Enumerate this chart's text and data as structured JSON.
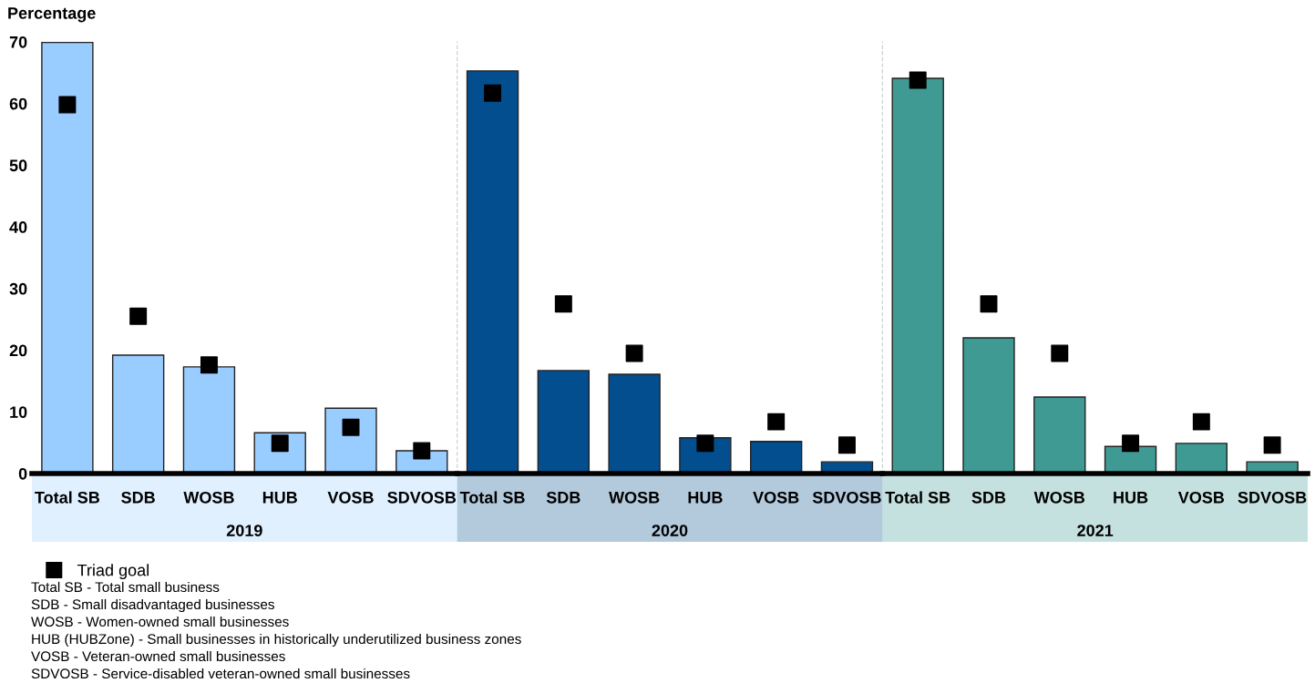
{
  "chart_data": [
    {
      "type": "bar",
      "ylabel": "Percentage",
      "xlabel": "2019",
      "categories": [
        "Total SB",
        "SDB",
        "WOSB",
        "HUB",
        "VOSB",
        "SDVOSB"
      ],
      "series": [
        {
          "color": "#99ccff",
          "values": [
            69.9,
            19.2,
            17.3,
            6.6,
            10.6,
            3.7
          ]
        },
        {
          "name": "Triad goal",
          "type": "scatter",
          "color": "#000000",
          "values": [
            59.8,
            25.5,
            17.6,
            4.9,
            7.5,
            3.7
          ]
        }
      ],
      "marker": "square",
      "ylim": [
        0,
        70
      ],
      "yticks": [
        0,
        10,
        20,
        30,
        40,
        50,
        60,
        70
      ],
      "grid": false,
      "legend": "bottom left",
      "annotations": [
        "Total SB - Total small business",
        "SDB - Small disadvantaged businesses",
        "WOSB - Women-owned small businesses",
        "HUB (HUBZone) - Small businesses in historically underutilized business zones",
        "VOSB - Veteran-owned small businesses",
        "SDVOSB - Service-disabled veteran-owned small businesses"
      ]
    },
    {
      "type": "bar",
      "xlabel": "2020",
      "categories": [
        "Total SB",
        "SDB",
        "WOSB",
        "HUB",
        "VOSB",
        "SDVOSB"
      ],
      "series": [
        {
          "color": "#034e8f",
          "values": [
            65.3,
            16.7,
            16.1,
            5.8,
            5.2,
            1.9
          ]
        },
        {
          "type": "scatter",
          "color": "#000000",
          "values": [
            61.7,
            27.5,
            19.5,
            4.9,
            8.4,
            4.6
          ]
        }
      ],
      "marker": "square",
      "ylim": [
        0,
        70
      ],
      "yticks": [
        0,
        10,
        20,
        30,
        40,
        50,
        60,
        70
      ],
      "grid": false,
      "tick_labels": "x"
    },
    {
      "type": "bar",
      "xlabel": "2021",
      "categories": [
        "Total SB",
        "SDB",
        "WOSB",
        "HUB",
        "VOSB",
        "SDVOSB"
      ],
      "series": [
        {
          "color": "#3f9a94",
          "values": [
            64.1,
            22.0,
            12.4,
            4.4,
            4.9,
            1.9
          ]
        },
        {
          "type": "scatter",
          "color": "#000000",
          "values": [
            63.8,
            27.5,
            19.5,
            4.9,
            8.4,
            4.6
          ]
        }
      ],
      "marker": "square",
      "ylim": [
        0,
        70
      ],
      "yticks": [
        0,
        10,
        20,
        30,
        40,
        50,
        60,
        70
      ],
      "grid": false,
      "tick_labels": "x"
    }
  ]
}
